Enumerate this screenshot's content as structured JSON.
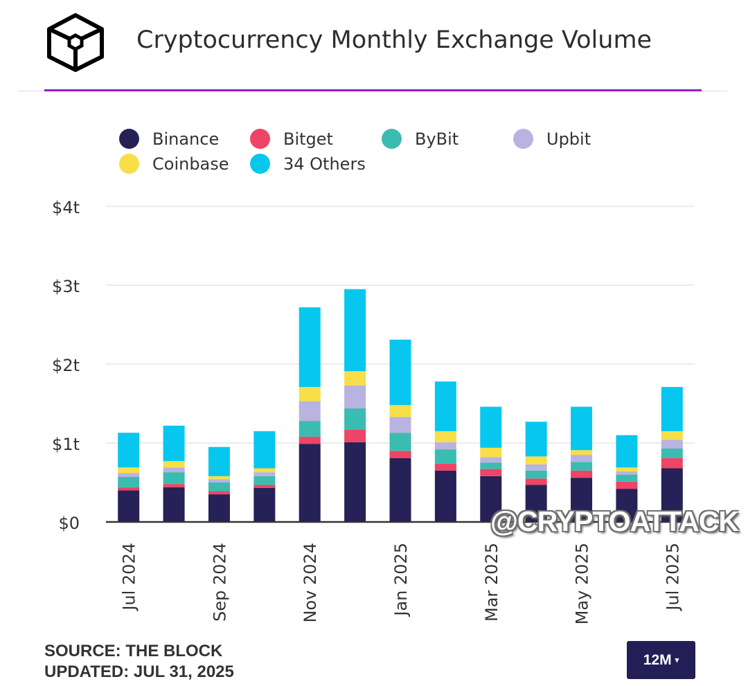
{
  "header": {
    "title": "Cryptocurrency Monthly Exchange Volume",
    "logo_icon": "the-block-cube-logo-icon",
    "accent_color": "#8f1fc6"
  },
  "chart_data": {
    "type": "bar",
    "stacked": true,
    "title": "Cryptocurrency Monthly Exchange Volume",
    "xlabel": "",
    "ylabel": "",
    "ylim": [
      0,
      4
    ],
    "y_unit": "trillion USD",
    "y_ticks": [
      0,
      1,
      2,
      3,
      4
    ],
    "y_tick_labels": [
      "$0",
      "$1t",
      "$2t",
      "$3t",
      "$4t"
    ],
    "grid": true,
    "legend_position": "top-left",
    "categories": [
      "Jul 2024",
      "Aug 2024",
      "Sep 2024",
      "Oct 2024",
      "Nov 2024",
      "Dec 2024",
      "Jan 2025",
      "Feb 2025",
      "Mar 2025",
      "Apr 2025",
      "May 2025",
      "Jun 2025",
      "Jul 2025"
    ],
    "x_tick_labels": [
      "Jul 2024",
      "",
      "Sep 2024",
      "",
      "Nov 2024",
      "",
      "Jan 2025",
      "",
      "Mar 2025",
      "",
      "May 2025",
      "",
      "Jul 2025"
    ],
    "series": [
      {
        "name": "Binance",
        "color": "#262156",
        "values": [
          0.4,
          0.44,
          0.35,
          0.43,
          0.99,
          1.01,
          0.81,
          0.65,
          0.58,
          0.47,
          0.56,
          0.42,
          0.68
        ]
      },
      {
        "name": "Bitget",
        "color": "#ee4466",
        "values": [
          0.04,
          0.04,
          0.04,
          0.04,
          0.09,
          0.16,
          0.09,
          0.09,
          0.09,
          0.08,
          0.09,
          0.09,
          0.13
        ]
      },
      {
        "name": "ByBit",
        "color": "#3bbcb0",
        "values": [
          0.13,
          0.15,
          0.11,
          0.11,
          0.2,
          0.27,
          0.23,
          0.18,
          0.08,
          0.1,
          0.11,
          0.09,
          0.12
        ]
      },
      {
        "name": "Upbit",
        "color": "#b8b3e0",
        "values": [
          0.05,
          0.06,
          0.04,
          0.05,
          0.25,
          0.29,
          0.2,
          0.09,
          0.07,
          0.08,
          0.09,
          0.04,
          0.11
        ]
      },
      {
        "name": "Coinbase",
        "color": "#f8de48",
        "values": [
          0.07,
          0.08,
          0.04,
          0.05,
          0.18,
          0.18,
          0.15,
          0.14,
          0.12,
          0.1,
          0.06,
          0.05,
          0.11
        ]
      },
      {
        "name": "34 Others",
        "color": "#08c7ee",
        "values": [
          0.44,
          0.45,
          0.37,
          0.47,
          1.01,
          1.04,
          0.83,
          0.63,
          0.52,
          0.44,
          0.55,
          0.41,
          0.56
        ]
      }
    ]
  },
  "watermark": "@CRYPTOATTACK",
  "footer": {
    "source_line": "SOURCE: THE BLOCK",
    "updated_line": "UPDATED: JUL 31, 2025",
    "range_button": "12M",
    "range_caret": "▾"
  }
}
